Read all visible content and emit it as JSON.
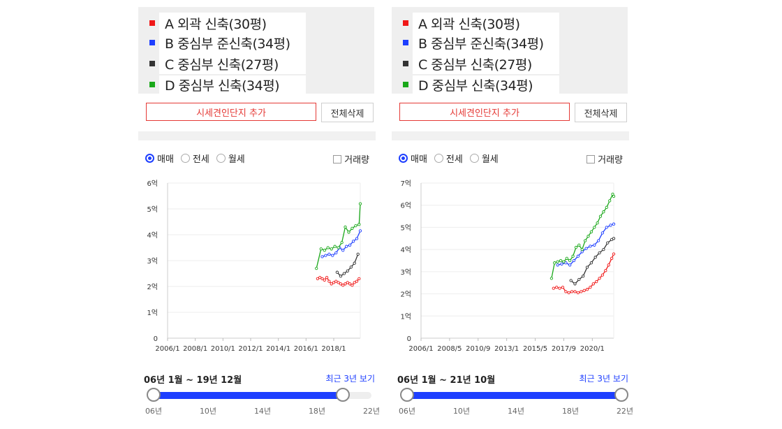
{
  "legend": [
    {
      "label": "A 외곽 신축(30평)",
      "color": "#f01818"
    },
    {
      "label": "B 중심부 준신축(34평)",
      "color": "#1e3fff"
    },
    {
      "label": "C 중심부 신축(27평)",
      "color": "#333333"
    },
    {
      "label": "D 중심부 신축(34평)",
      "color": "#1aa81a"
    }
  ],
  "buttons": {
    "add": "시세견인단지 추가",
    "clear": "전체삭제"
  },
  "radios": [
    {
      "label": "매매",
      "selected": true
    },
    {
      "label": "전세",
      "selected": false
    },
    {
      "label": "월세",
      "selected": false
    }
  ],
  "volume_label": "거래량",
  "recent_label": "최근 3년 보기",
  "panels": [
    {
      "range_label": "06년 1월 ~ 19년 12월",
      "slider": {
        "ticks": [
          "06년",
          "10년",
          "14년",
          "18년",
          "22년"
        ],
        "start_year": 2006,
        "end_year": 2019.92
      }
    },
    {
      "range_label": "06년 1월 ~ 21년 10월",
      "slider": {
        "ticks": [
          "06년",
          "10년",
          "14년",
          "18년",
          "22년"
        ],
        "start_year": 2006,
        "end_year": 2021.75
      }
    }
  ],
  "chart_data": [
    {
      "type": "line",
      "title": "",
      "xlabel": "",
      "ylabel": "",
      "y_unit": "억",
      "ylim": [
        0,
        6
      ],
      "y_ticks": [
        "0",
        "1억",
        "2억",
        "3억",
        "4억",
        "5억",
        "6억"
      ],
      "x_range": [
        "2006/1",
        "2019/12"
      ],
      "x_ticks": [
        "2006/1",
        "2008/1",
        "2010/1",
        "2012/1",
        "2014/1",
        "2016/1",
        "2018/1"
      ],
      "grid": true,
      "series": [
        {
          "name": "A 외곽 신축(30평)",
          "color": "#f01818",
          "x": [
            "2016/11",
            "2017/1",
            "2017/3",
            "2017/5",
            "2017/7",
            "2017/9",
            "2017/11",
            "2018/1",
            "2018/3",
            "2018/5",
            "2018/7",
            "2018/9",
            "2018/11",
            "2019/1",
            "2019/3",
            "2019/5",
            "2019/7",
            "2019/9",
            "2019/11"
          ],
          "y": [
            2.3,
            2.35,
            2.3,
            2.25,
            2.35,
            2.2,
            2.1,
            2.15,
            2.2,
            2.15,
            2.1,
            2.05,
            2.1,
            2.15,
            2.1,
            2.05,
            2.15,
            2.2,
            2.3
          ]
        },
        {
          "name": "B 중심부 준신축(34평)",
          "color": "#1e3fff",
          "x": [
            "2017/3",
            "2017/6",
            "2017/9",
            "2017/12",
            "2018/3",
            "2018/6",
            "2018/9",
            "2018/12",
            "2019/3",
            "2019/6",
            "2019/9",
            "2019/12"
          ],
          "y": [
            3.15,
            3.2,
            3.25,
            3.2,
            3.3,
            3.5,
            3.4,
            3.55,
            3.6,
            3.75,
            3.85,
            4.15
          ]
        },
        {
          "name": "C 중심부 신축(27평)",
          "color": "#333333",
          "x": [
            "2018/4",
            "2018/7",
            "2018/10",
            "2019/1",
            "2019/4",
            "2019/7",
            "2019/10"
          ],
          "y": [
            2.55,
            2.4,
            2.5,
            2.6,
            2.75,
            2.9,
            3.25
          ]
        },
        {
          "name": "D 중심부 신축(34평)",
          "color": "#1aa81a",
          "x": [
            "2016/10",
            "2017/2",
            "2017/5",
            "2017/8",
            "2017/11",
            "2018/2",
            "2018/5",
            "2018/8",
            "2018/11",
            "2019/2",
            "2019/5",
            "2019/8",
            "2019/11",
            "2019/12"
          ],
          "y": [
            2.7,
            3.45,
            3.4,
            3.5,
            3.45,
            3.55,
            3.5,
            3.7,
            4.3,
            4.1,
            4.25,
            4.35,
            4.4,
            5.2
          ]
        }
      ]
    },
    {
      "type": "line",
      "title": "",
      "xlabel": "",
      "ylabel": "",
      "y_unit": "억",
      "ylim": [
        0,
        7
      ],
      "y_ticks": [
        "0",
        "1억",
        "2억",
        "3억",
        "4억",
        "5억",
        "6억",
        "7억"
      ],
      "x_range": [
        "2006/1",
        "2021/10"
      ],
      "x_ticks": [
        "2006/1",
        "2008/5",
        "2010/9",
        "2013/1",
        "2015/5",
        "2017/9",
        "2020/1"
      ],
      "grid": true,
      "series": [
        {
          "name": "A 외곽 신축(30평)",
          "color": "#f01818",
          "x": [
            "2016/11",
            "2017/2",
            "2017/5",
            "2017/8",
            "2017/11",
            "2018/2",
            "2018/5",
            "2018/8",
            "2018/11",
            "2019/2",
            "2019/5",
            "2019/8",
            "2019/11",
            "2020/2",
            "2020/5",
            "2020/8",
            "2020/11",
            "2021/2",
            "2021/5",
            "2021/8",
            "2021/10"
          ],
          "y": [
            2.25,
            2.3,
            2.25,
            2.3,
            2.1,
            2.05,
            2.1,
            2.1,
            2.05,
            2.1,
            2.15,
            2.2,
            2.3,
            2.45,
            2.55,
            2.7,
            2.85,
            3.05,
            3.3,
            3.6,
            3.8
          ]
        },
        {
          "name": "B 중심부 준신축(34평)",
          "color": "#1e3fff",
          "x": [
            "2017/3",
            "2017/7",
            "2017/11",
            "2018/3",
            "2018/7",
            "2018/11",
            "2019/3",
            "2019/7",
            "2019/11",
            "2020/3",
            "2020/7",
            "2020/11",
            "2021/3",
            "2021/7",
            "2021/10"
          ],
          "y": [
            3.3,
            3.35,
            3.4,
            3.3,
            3.5,
            3.7,
            3.9,
            4.05,
            4.15,
            4.2,
            4.4,
            4.75,
            5.0,
            5.1,
            5.15
          ]
        },
        {
          "name": "C 중심부 신축(27평)",
          "color": "#333333",
          "x": [
            "2018/4",
            "2018/8",
            "2018/12",
            "2019/4",
            "2019/8",
            "2019/12",
            "2020/4",
            "2020/8",
            "2020/12",
            "2021/4",
            "2021/8",
            "2021/10"
          ],
          "y": [
            2.6,
            2.45,
            2.65,
            2.8,
            3.2,
            3.4,
            3.65,
            3.85,
            4.0,
            4.3,
            4.45,
            4.5
          ]
        },
        {
          "name": "D 중심부 신축(34평)",
          "color": "#1aa81a",
          "x": [
            "2016/9",
            "2016/12",
            "2017/3",
            "2017/6",
            "2017/9",
            "2017/12",
            "2018/3",
            "2018/6",
            "2018/9",
            "2018/12",
            "2019/3",
            "2019/6",
            "2019/9",
            "2019/12",
            "2020/3",
            "2020/6",
            "2020/9",
            "2020/12",
            "2021/3",
            "2021/6",
            "2021/9",
            "2021/10"
          ],
          "y": [
            2.7,
            3.4,
            3.45,
            3.5,
            3.45,
            3.6,
            3.5,
            3.7,
            4.1,
            4.2,
            4.0,
            4.4,
            4.6,
            4.8,
            5.0,
            5.2,
            5.5,
            5.7,
            5.9,
            6.2,
            6.5,
            6.4
          ]
        }
      ]
    }
  ]
}
